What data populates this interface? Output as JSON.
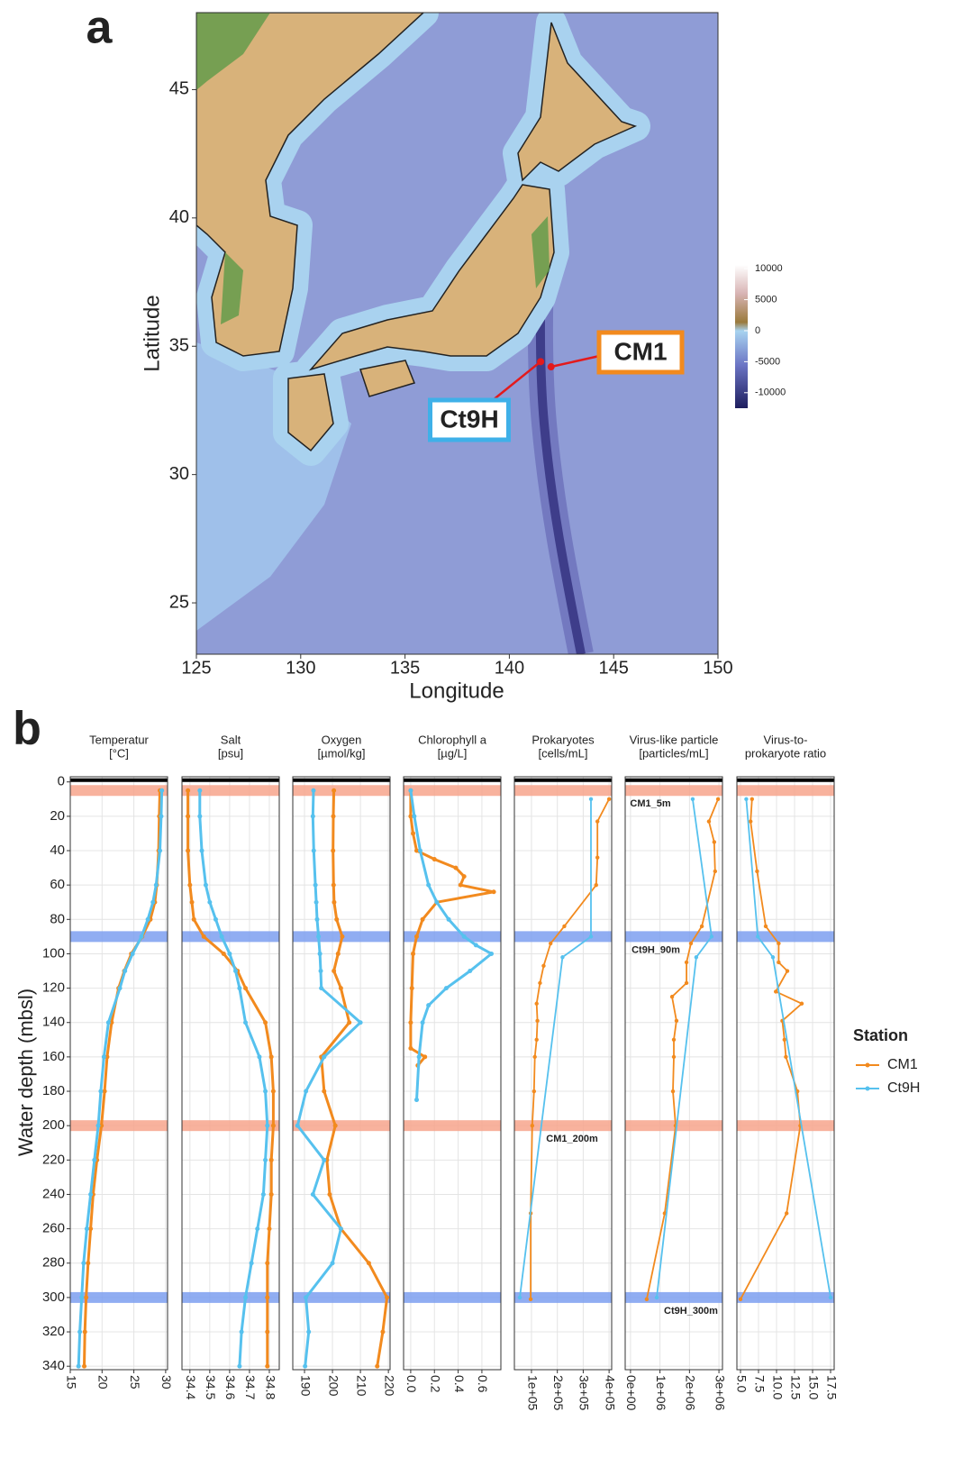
{
  "chart_data": [
    {
      "type": "map",
      "panel_label": "a",
      "x_label": "Longitude",
      "y_label": "Latitude",
      "xlim": [
        125,
        150
      ],
      "ylim": [
        23,
        48
      ],
      "xticks": [
        125,
        130,
        135,
        140,
        145,
        150
      ],
      "yticks": [
        25,
        30,
        35,
        40,
        45
      ],
      "points": [
        {
          "name": "CM1",
          "lon": 142.0,
          "lat": 34.2,
          "color": "#f28a1e"
        },
        {
          "name": "Ct9H",
          "lon": 141.5,
          "lat": 34.4,
          "color": "#3fb0e8"
        }
      ],
      "point_color": "#e31a1c",
      "colorbar": {
        "lim": [
          -12500,
          10600
        ],
        "ticks": [
          10000,
          5000,
          0,
          -5000,
          -10000
        ]
      }
    },
    {
      "type": "profiles",
      "panel_label": "b",
      "y_label": "Water depth (mbsl)",
      "ylim": [
        -3,
        342
      ],
      "yticks": [
        0,
        20,
        40,
        60,
        80,
        100,
        120,
        140,
        160,
        180,
        200,
        220,
        240,
        260,
        280,
        300,
        320,
        340
      ],
      "legend_title": "Station",
      "stations": [
        {
          "name": "CM1",
          "color": "#f28a1e"
        },
        {
          "name": "Ct9H",
          "color": "#56c1ee"
        }
      ],
      "samples": [
        {
          "depth": 5,
          "station": "CM1",
          "label": "CM1_5m"
        },
        {
          "depth": 90,
          "station": "Ct9H",
          "label": "Ct9H_90m"
        },
        {
          "depth": 200,
          "station": "CM1",
          "label": "CM1_200m"
        },
        {
          "depth": 300,
          "station": "Ct9H",
          "label": "Ct9H_300m"
        }
      ],
      "band_colors": {
        "CM1": "#f7a58c",
        "Ct9H": "#7c9ff0"
      },
      "panels": [
        {
          "title": "Temperatur",
          "unit": "[°C]",
          "xlim": [
            15,
            30.3
          ],
          "xticks": [
            15,
            20,
            25,
            30
          ],
          "series": [
            {
              "x": [
                29.1,
                29.0,
                28.9,
                28.6,
                28.3,
                27.6,
                26.3,
                24.6,
                23.5,
                22.6,
                21.5,
                20.8,
                20.4,
                19.9,
                19.2,
                18.6,
                18.2,
                17.8,
                17.5,
                17.3,
                17.2
              ],
              "y": [
                5,
                20,
                40,
                60,
                70,
                80,
                90,
                100,
                110,
                120,
                140,
                160,
                180,
                200,
                220,
                240,
                260,
                280,
                300,
                320,
                340
              ]
            },
            {
              "x": [
                29.4,
                29.3,
                29.1,
                28.5,
                28.0,
                27.2,
                26.2,
                24.8,
                23.6,
                22.8,
                21.0,
                20.3,
                19.8,
                19.4,
                18.8,
                18.2,
                17.6,
                17.1,
                16.8,
                16.5,
                16.3
              ],
              "y": [
                5,
                20,
                40,
                60,
                70,
                80,
                90,
                100,
                110,
                120,
                140,
                160,
                180,
                200,
                220,
                240,
                260,
                280,
                300,
                320,
                340
              ]
            }
          ]
        },
        {
          "title": "Salt",
          "unit": "[psu]",
          "xlim": [
            34.36,
            34.85
          ],
          "xticks": [
            34.4,
            34.5,
            34.6,
            34.7,
            34.8
          ],
          "series": [
            {
              "x": [
                34.39,
                34.39,
                34.39,
                34.4,
                34.41,
                34.42,
                34.47,
                34.57,
                34.64,
                34.68,
                34.78,
                34.81,
                34.82,
                34.82,
                34.81,
                34.81,
                34.8,
                34.79,
                34.79,
                34.79,
                34.79
              ],
              "y": [
                5,
                20,
                40,
                60,
                70,
                80,
                90,
                100,
                110,
                120,
                140,
                160,
                180,
                200,
                220,
                240,
                260,
                280,
                300,
                320,
                340
              ]
            },
            {
              "x": [
                34.45,
                34.45,
                34.46,
                34.48,
                34.5,
                34.53,
                34.56,
                34.6,
                34.63,
                34.65,
                34.68,
                34.75,
                34.78,
                34.79,
                34.78,
                34.77,
                34.74,
                34.71,
                34.68,
                34.66,
                34.65
              ],
              "y": [
                5,
                20,
                40,
                60,
                70,
                80,
                90,
                100,
                110,
                120,
                140,
                160,
                180,
                200,
                220,
                240,
                260,
                280,
                300,
                320,
                340
              ]
            }
          ]
        },
        {
          "title": "Oxygen",
          "unit": "[µmol/kg]",
          "xlim": [
            185.8,
            220.6
          ],
          "xticks": [
            190,
            200,
            210,
            220
          ],
          "series": [
            {
              "x": [
                200.5,
                200.3,
                200.2,
                200.4,
                200.6,
                201.5,
                203.5,
                202,
                200.5,
                203,
                206,
                196,
                197,
                201,
                198,
                199,
                203,
                213,
                219.5,
                218,
                216
              ],
              "y": [
                5,
                20,
                40,
                60,
                70,
                80,
                90,
                100,
                110,
                120,
                140,
                160,
                180,
                200,
                220,
                240,
                260,
                280,
                300,
                320,
                340
              ]
            },
            {
              "x": [
                193.2,
                193.0,
                193.3,
                193.9,
                194.2,
                194.5,
                195,
                195.5,
                195.8,
                196,
                210,
                197,
                190.5,
                187.5,
                197,
                193,
                203,
                200,
                190.5,
                191.5,
                190.2
              ],
              "y": [
                5,
                20,
                40,
                60,
                70,
                80,
                90,
                100,
                110,
                120,
                140,
                160,
                180,
                200,
                220,
                240,
                260,
                280,
                300,
                320,
                340
              ]
            }
          ]
        },
        {
          "title": "Chlorophyll a",
          "unit": "[µg/L]",
          "xlim": [
            -0.06,
            0.76
          ],
          "xticks": [
            {
              "value": 0,
              "label": "0.0"
            },
            0.2,
            0.4,
            0.6
          ],
          "series": [
            {
              "x": [
                0.0,
                0.0,
                0.02,
                0.05,
                0.2,
                0.38,
                0.45,
                0.42,
                0.7,
                0.22,
                0.1,
                0.05,
                0.02,
                0.01,
                0.0,
                0.0,
                0.12,
                0.06
              ],
              "y": [
                5,
                20,
                30,
                40,
                45,
                50,
                55,
                60,
                64,
                70,
                80,
                90,
                100,
                120,
                140,
                155,
                160,
                165
              ]
            },
            {
              "x": [
                0.0,
                0.03,
                0.08,
                0.15,
                0.22,
                0.32,
                0.45,
                0.55,
                0.68,
                0.5,
                0.3,
                0.15,
                0.1,
                0.07,
                0.05
              ],
              "y": [
                5,
                20,
                40,
                60,
                70,
                80,
                90,
                95,
                100,
                110,
                120,
                130,
                140,
                160,
                185
              ]
            }
          ]
        },
        {
          "title": "Prokaryotes",
          "unit": "[cells/mL]",
          "xlim": [
            34000,
            410000
          ],
          "xticks": [
            {
              "value": 100000,
              "label": "1e+05"
            },
            {
              "value": 200000,
              "label": "2e+05"
            },
            {
              "value": 300000,
              "label": "3e+05"
            },
            {
              "value": 400000,
              "label": "4e+05"
            }
          ],
          "series": [
            {
              "x": [
                400000,
                355000,
                355000,
                350000,
                227000,
                174000,
                147000,
                133000,
                120000,
                123000,
                120000,
                113000,
                110000,
                103000,
                97000,
                97000
              ],
              "y": [
                10,
                23,
                44,
                60,
                84,
                94,
                107,
                117,
                129,
                139,
                150,
                160,
                180,
                200,
                251,
                301
              ]
            },
            {
              "x": [
                330000,
                330000,
                220000,
                55000
              ],
              "y": [
                10,
                90,
                102,
                300
              ]
            }
          ]
        },
        {
          "title": "Virus-like particle",
          "unit": "[particles/mL]",
          "xlim": [
            -180000,
            3120000
          ],
          "xticks": [
            {
              "value": 0,
              "label": "0e+00"
            },
            {
              "value": 1000000,
              "label": "1e+06"
            },
            {
              "value": 2000000,
              "label": "2e+06"
            },
            {
              "value": 3000000,
              "label": "3e+06"
            }
          ],
          "series": [
            {
              "x": [
                2970000,
                2660000,
                2840000,
                2870000,
                2420000,
                2050000,
                1900000,
                1900000,
                1410000,
                1560000,
                1470000,
                1470000,
                1440000,
                1530000,
                1160000,
                550000
              ],
              "y": [
                10,
                23,
                35,
                52,
                84,
                94,
                105,
                117,
                125,
                139,
                150,
                160,
                180,
                200,
                251,
                301
              ]
            },
            {
              "x": [
                2110000,
                2750000,
                2230000,
                890000
              ],
              "y": [
                10,
                90,
                102,
                300
              ]
            }
          ]
        },
        {
          "title": "Virus-to-",
          "unit": "prokaryote ratio",
          "xlim": [
            4.5,
            18
          ],
          "xticks": [
            {
              "value": 5,
              "label": "5.0"
            },
            7.5,
            {
              "value": 10,
              "label": "10.0"
            },
            12.5,
            {
              "value": 15,
              "label": "15.0"
            },
            17.5
          ],
          "series": [
            {
              "x": [
                6.6,
                6.4,
                7.3,
                8.5,
                10.3,
                10.3,
                11.5,
                9.9,
                13.5,
                10.8,
                11.1,
                11.3,
                12.9,
                13.3,
                11.4,
                5.0
              ],
              "y": [
                10,
                23,
                52,
                84,
                94,
                105,
                110,
                122,
                129,
                139,
                150,
                160,
                180,
                200,
                251,
                301
              ]
            },
            {
              "x": [
                5.8,
                7.4,
                9.5,
                17.5
              ],
              "y": [
                10,
                90,
                102,
                300
              ]
            }
          ]
        }
      ]
    }
  ]
}
